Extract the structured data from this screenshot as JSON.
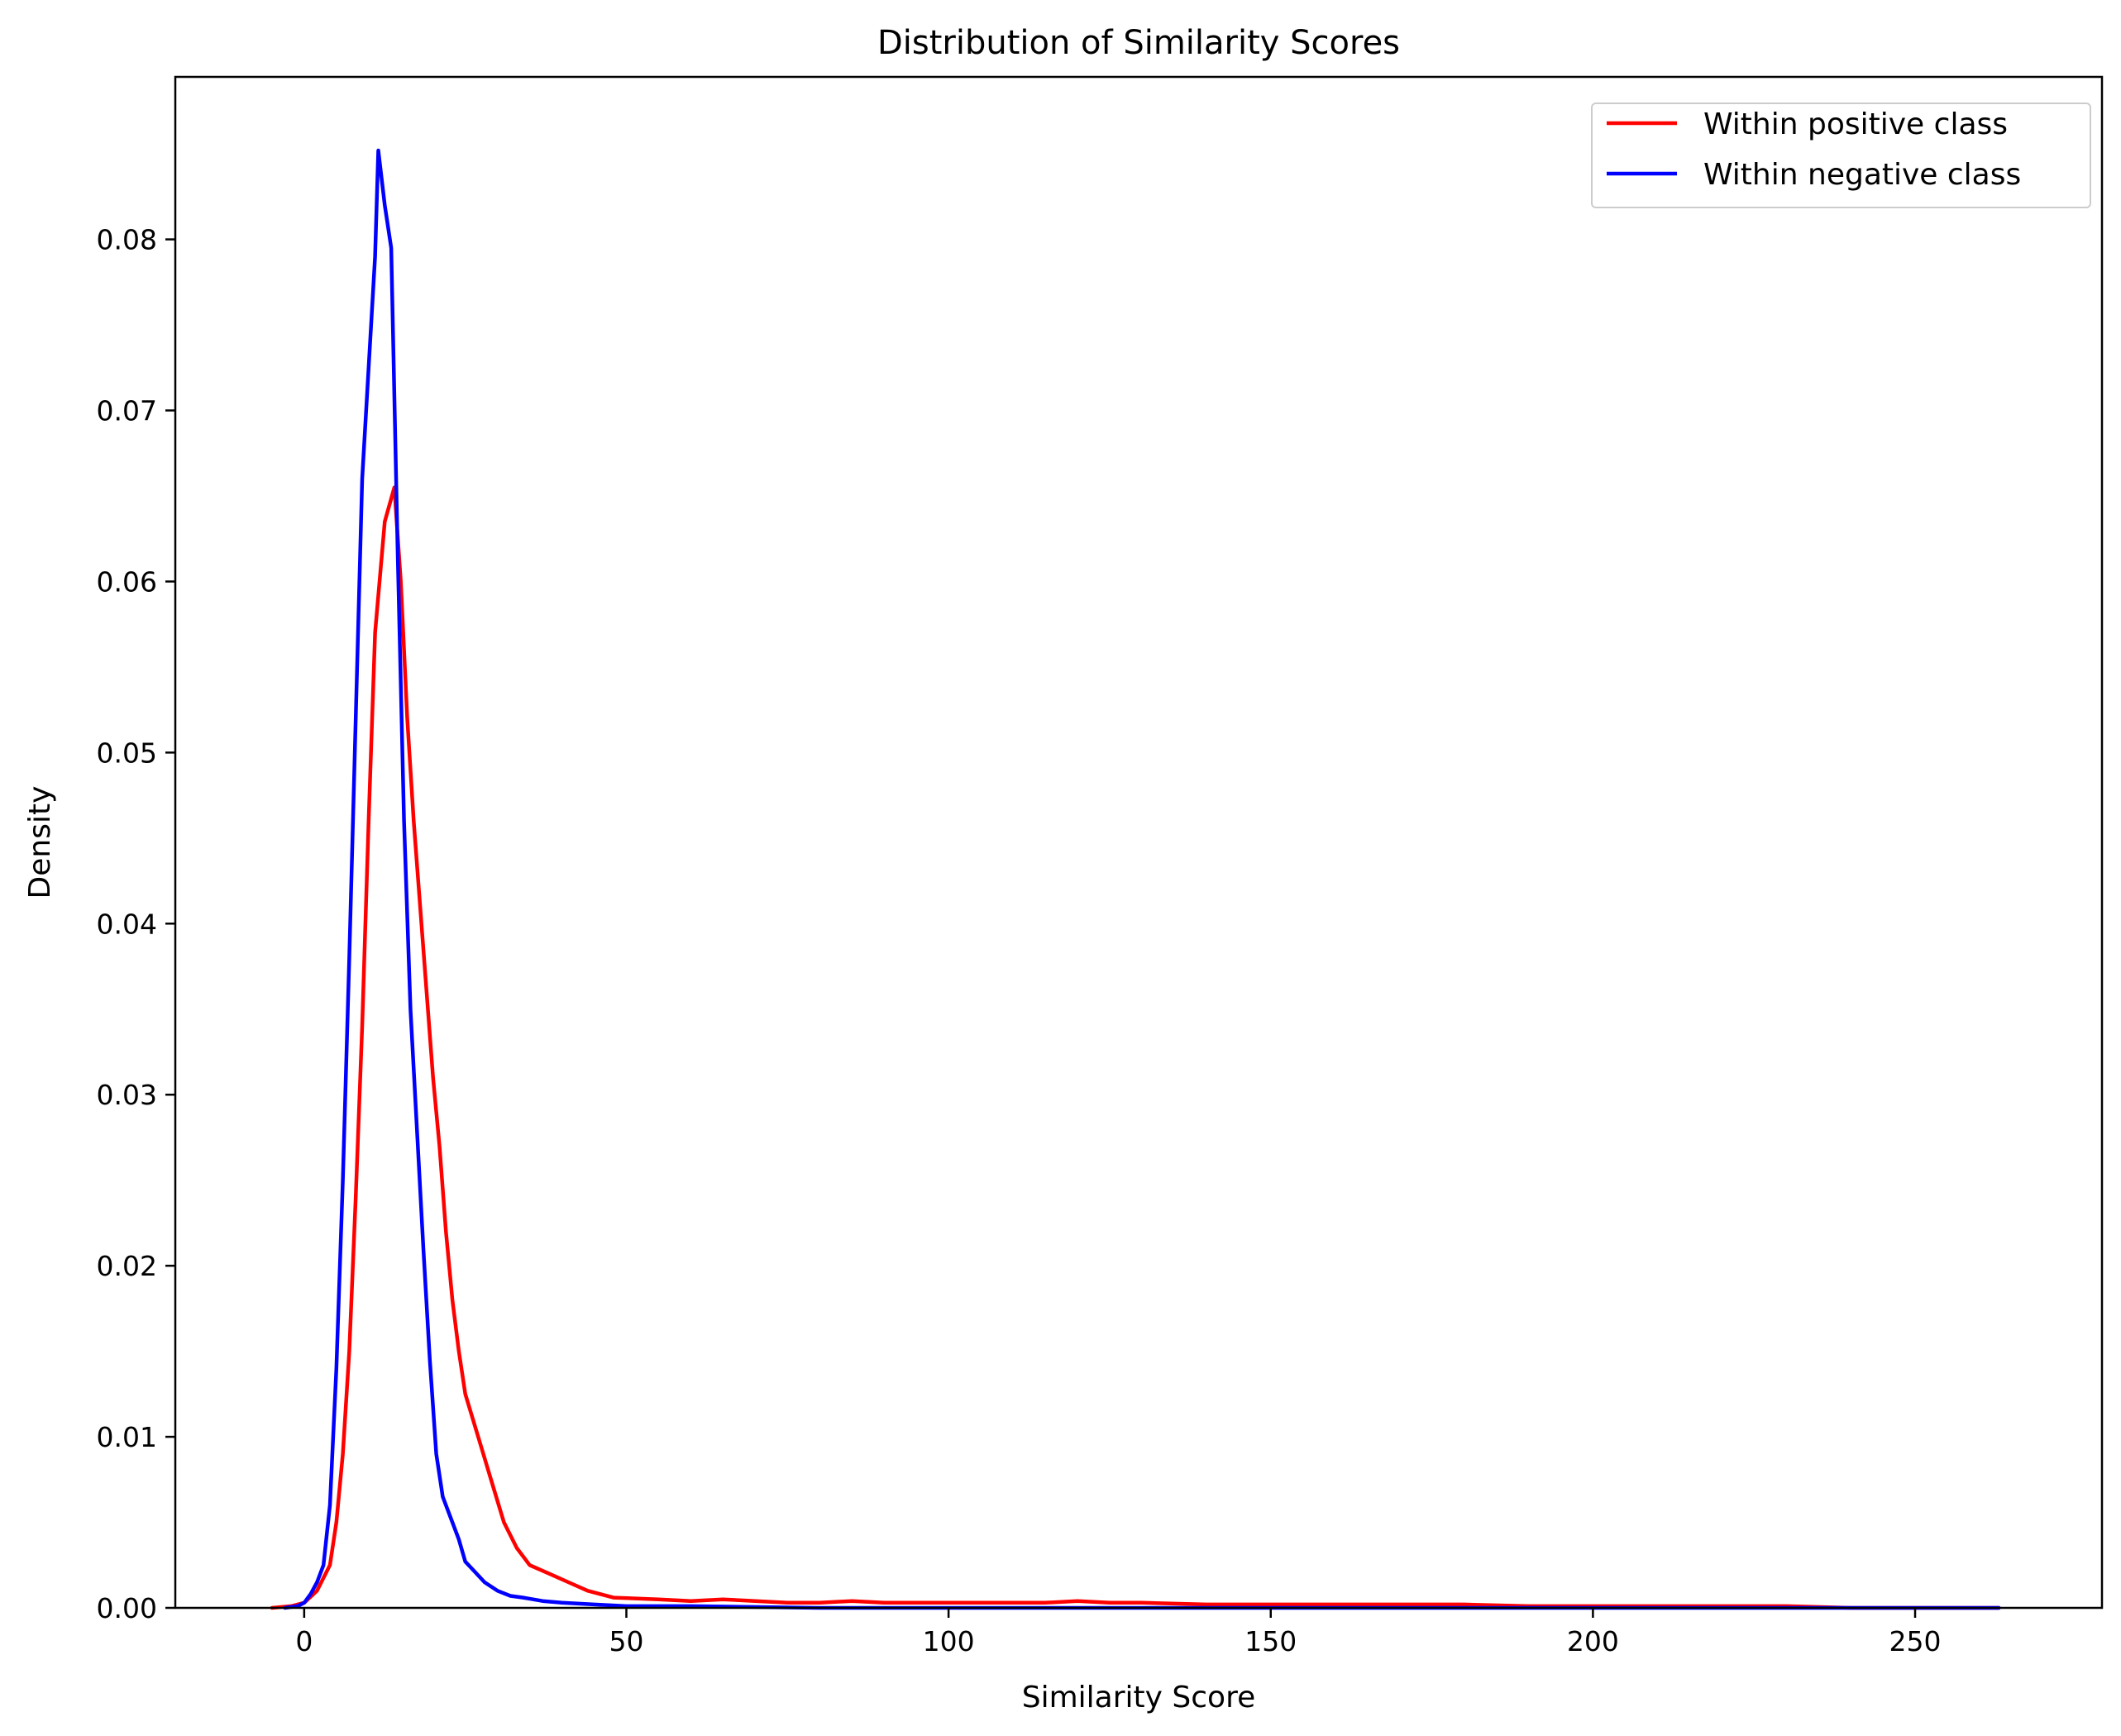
{
  "chart_data": {
    "type": "line",
    "title": "Distribution of Similarity Scores",
    "xlabel": "Similarity Score",
    "ylabel": "Density",
    "xlim": [
      -20,
      279
    ],
    "ylim": [
      0,
      0.0895
    ],
    "xticks": [
      0,
      50,
      100,
      150,
      200,
      250
    ],
    "xtick_labels": [
      "0",
      "50",
      "100",
      "150",
      "200",
      "250"
    ],
    "yticks": [
      0,
      0.01,
      0.02,
      0.03,
      0.04,
      0.05,
      0.06,
      0.07,
      0.08
    ],
    "ytick_labels": [
      "0.00",
      "0.01",
      "0.02",
      "0.03",
      "0.04",
      "0.05",
      "0.06",
      "0.07",
      "0.08"
    ],
    "grid": false,
    "legend_position": "top-right",
    "series": [
      {
        "name": "Within positive class",
        "color": "#ff0000",
        "points": [
          [
            -5,
            0
          ],
          [
            -2,
            0.0001
          ],
          [
            0,
            0.0003
          ],
          [
            2,
            0.001
          ],
          [
            4,
            0.0025
          ],
          [
            5,
            0.005
          ],
          [
            6,
            0.009
          ],
          [
            7,
            0.015
          ],
          [
            8,
            0.024
          ],
          [
            9,
            0.034
          ],
          [
            10,
            0.046
          ],
          [
            11,
            0.057
          ],
          [
            12.5,
            0.0635
          ],
          [
            14,
            0.0655
          ],
          [
            15,
            0.06
          ],
          [
            16,
            0.052
          ],
          [
            17,
            0.046
          ],
          [
            18,
            0.041
          ],
          [
            19,
            0.036
          ],
          [
            20,
            0.031
          ],
          [
            21,
            0.027
          ],
          [
            22,
            0.022
          ],
          [
            23,
            0.018
          ],
          [
            24,
            0.015
          ],
          [
            25,
            0.0125
          ],
          [
            27,
            0.01
          ],
          [
            29,
            0.0075
          ],
          [
            31,
            0.005
          ],
          [
            33,
            0.0035
          ],
          [
            35,
            0.0025
          ],
          [
            38,
            0.002
          ],
          [
            41,
            0.0015
          ],
          [
            44,
            0.001
          ],
          [
            48,
            0.0006
          ],
          [
            55,
            0.0005
          ],
          [
            60,
            0.0004
          ],
          [
            65,
            0.0005
          ],
          [
            70,
            0.0004
          ],
          [
            75,
            0.0003
          ],
          [
            80,
            0.0003
          ],
          [
            85,
            0.0004
          ],
          [
            90,
            0.0003
          ],
          [
            100,
            0.0003
          ],
          [
            110,
            0.0003
          ],
          [
            115,
            0.0003
          ],
          [
            120,
            0.0004
          ],
          [
            125,
            0.0003
          ],
          [
            130,
            0.0003
          ],
          [
            140,
            0.0002
          ],
          [
            150,
            0.0002
          ],
          [
            160,
            0.0002
          ],
          [
            170,
            0.0002
          ],
          [
            180,
            0.0002
          ],
          [
            190,
            0.0001
          ],
          [
            200,
            0.0001
          ],
          [
            210,
            0.0001
          ],
          [
            220,
            0.0001
          ],
          [
            230,
            0.0001
          ],
          [
            240,
            0
          ],
          [
            255,
            0
          ],
          [
            263,
            0
          ]
        ]
      },
      {
        "name": "Within negative class",
        "color": "#0000ff",
        "points": [
          [
            -3,
            0
          ],
          [
            -1,
            0.0001
          ],
          [
            0,
            0.0003
          ],
          [
            1,
            0.0008
          ],
          [
            2,
            0.0015
          ],
          [
            3,
            0.0025
          ],
          [
            4,
            0.006
          ],
          [
            5,
            0.014
          ],
          [
            6,
            0.025
          ],
          [
            7,
            0.038
          ],
          [
            8,
            0.052
          ],
          [
            9,
            0.066
          ],
          [
            10,
            0.0725
          ],
          [
            11,
            0.079
          ],
          [
            11.5,
            0.0852
          ],
          [
            12.5,
            0.082
          ],
          [
            13.5,
            0.0795
          ],
          [
            14.5,
            0.062
          ],
          [
            15.5,
            0.046
          ],
          [
            16.5,
            0.035
          ],
          [
            17.5,
            0.028
          ],
          [
            18.5,
            0.021
          ],
          [
            19.5,
            0.0145
          ],
          [
            20.5,
            0.009
          ],
          [
            21.5,
            0.0065
          ],
          [
            22.5,
            0.0055
          ],
          [
            24,
            0.004
          ],
          [
            25,
            0.0027
          ],
          [
            26.5,
            0.0021
          ],
          [
            28,
            0.0015
          ],
          [
            30,
            0.001
          ],
          [
            32,
            0.0007
          ],
          [
            34,
            0.0006
          ],
          [
            37,
            0.0004
          ],
          [
            40,
            0.0003
          ],
          [
            45,
            0.0002
          ],
          [
            50,
            0.0001
          ],
          [
            60,
            0.0001
          ],
          [
            80,
            0
          ],
          [
            100,
            0
          ],
          [
            150,
            0
          ],
          [
            200,
            0
          ],
          [
            250,
            0
          ],
          [
            263,
            0
          ]
        ]
      }
    ]
  }
}
